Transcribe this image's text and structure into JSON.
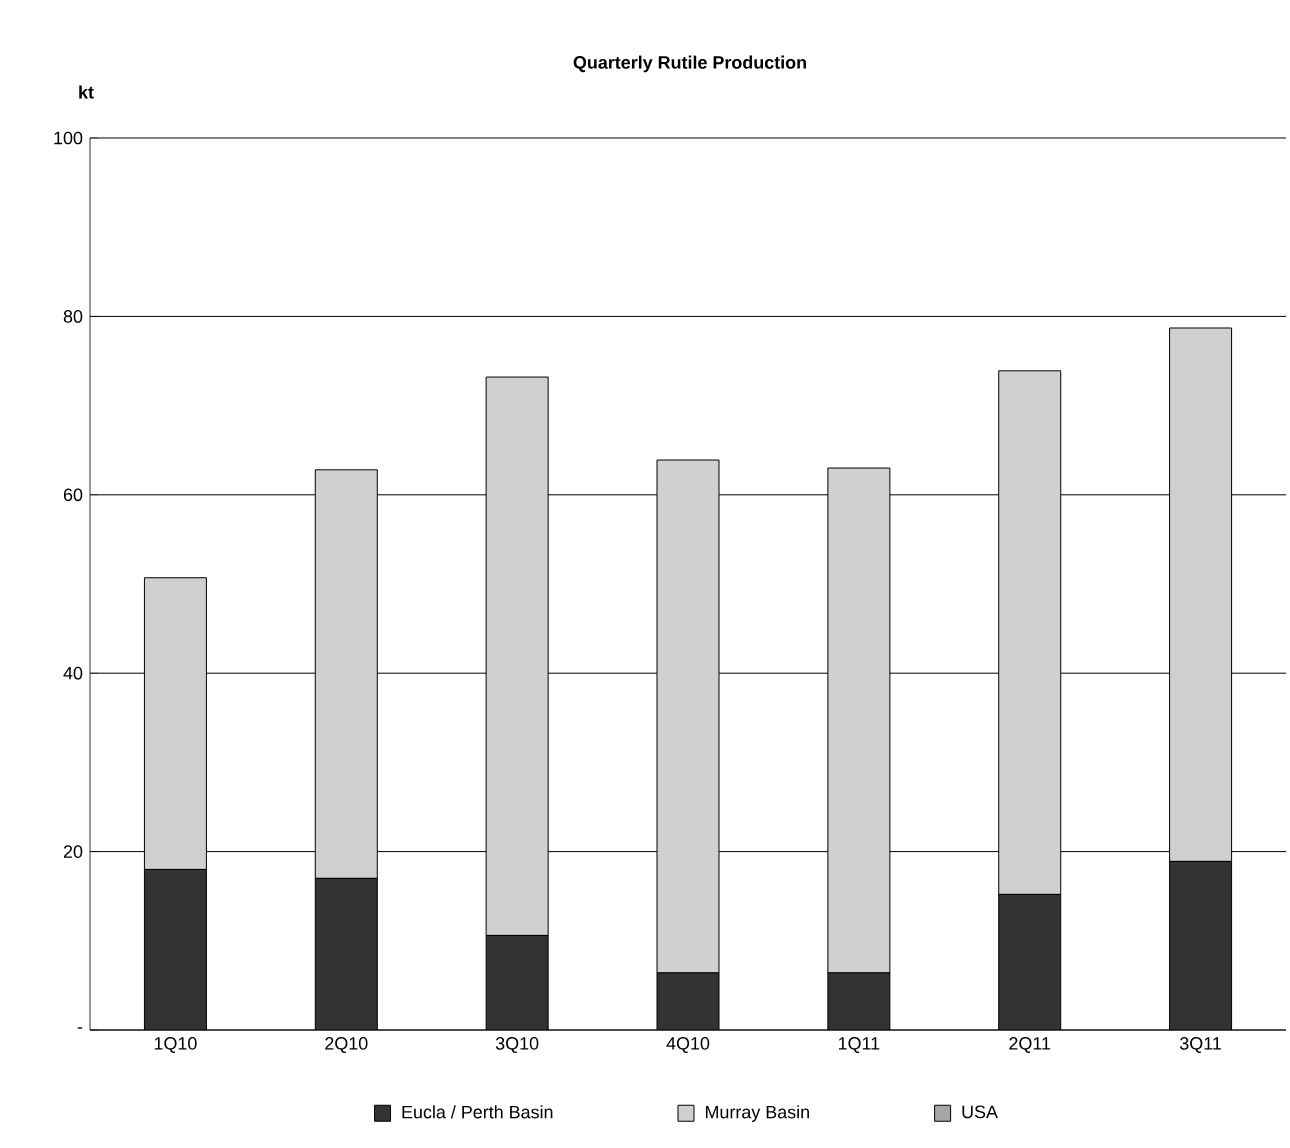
{
  "chart_data": {
    "type": "bar",
    "stacked": true,
    "title": "Quarterly Rutile Production",
    "ylabel": "kt",
    "categories": [
      "1Q10",
      "2Q10",
      "3Q10",
      "4Q10",
      "1Q11",
      "2Q11",
      "3Q11"
    ],
    "series": [
      {
        "name": "Eucla / Perth Basin",
        "color": "#333333",
        "values": [
          18.0,
          17.0,
          10.6,
          6.4,
          6.4,
          15.2,
          18.9
        ]
      },
      {
        "name": "Murray Basin",
        "color": "#d0d0d0",
        "values": [
          32.7,
          45.8,
          62.6,
          57.5,
          56.6,
          58.7,
          59.8
        ]
      },
      {
        "name": "USA",
        "color": "#a6a6a6",
        "values": [
          null,
          null,
          null,
          null,
          null,
          null,
          null
        ]
      }
    ],
    "ylim": [
      0,
      100
    ],
    "yticks": [
      {
        "value": 0,
        "label": "-"
      },
      20,
      40,
      60,
      80,
      100
    ],
    "grid": "y",
    "legend": "bottom"
  }
}
